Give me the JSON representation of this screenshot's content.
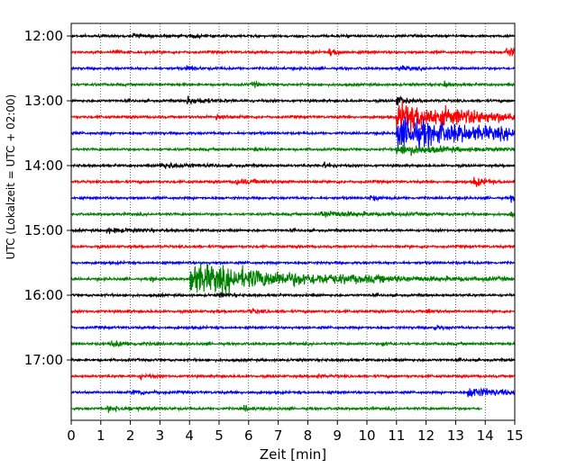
{
  "chart_data": {
    "type": "line",
    "title": "",
    "xlabel": "Zeit  [min]",
    "ylabel": "UTC (Lokalzeit = UTC + 02:00)",
    "xlim": [
      0,
      15
    ],
    "x_ticks": [
      0,
      1,
      2,
      3,
      4,
      5,
      6,
      7,
      8,
      9,
      10,
      11,
      12,
      13,
      14,
      15
    ],
    "y_ticks": [
      {
        "label": "12:00",
        "trace": 0
      },
      {
        "label": "13:00",
        "trace": 4
      },
      {
        "label": "14:00",
        "trace": 8
      },
      {
        "label": "15:00",
        "trace": 12
      },
      {
        "label": "16:00",
        "trace": 16
      },
      {
        "label": "17:00",
        "trace": 20
      }
    ],
    "grid": "vertical-dotted",
    "trace_interval_min": 15,
    "colors": [
      "#000000",
      "#ff0000",
      "#0000ff",
      "#008000"
    ],
    "series": [
      {
        "start": "12:00",
        "events": [
          {
            "t": 2.1,
            "amp": 1.4,
            "dur": 0.3
          },
          {
            "t": 4.0,
            "amp": 1.3,
            "dur": 0.3
          }
        ]
      },
      {
        "start": "12:15",
        "events": [
          {
            "t": 1.4,
            "amp": 1.6,
            "dur": 0.2
          },
          {
            "t": 8.7,
            "amp": 2.2,
            "dur": 0.4
          },
          {
            "t": 14.7,
            "amp": 3.0,
            "dur": 0.5
          }
        ]
      },
      {
        "start": "12:30",
        "events": [
          {
            "t": 3.9,
            "amp": 1.4,
            "dur": 0.3
          },
          {
            "t": 11.0,
            "amp": 1.5,
            "dur": 0.4
          }
        ]
      },
      {
        "start": "12:45",
        "events": [
          {
            "t": 6.1,
            "amp": 1.8,
            "dur": 0.2
          },
          {
            "t": 12.6,
            "amp": 1.8,
            "dur": 0.2
          }
        ]
      },
      {
        "start": "13:00",
        "events": [
          {
            "t": 3.9,
            "amp": 2.2,
            "dur": 0.6
          },
          {
            "t": 11.0,
            "amp": 3.0,
            "dur": 0.3
          }
        ]
      },
      {
        "start": "13:15",
        "events": [
          {
            "t": 4.9,
            "amp": 1.9,
            "dur": 0.3
          },
          {
            "t": 11.0,
            "amp": 8.0,
            "dur": 3.0
          }
        ]
      },
      {
        "start": "13:30",
        "events": [
          {
            "t": 11.0,
            "amp": 9.0,
            "dur": 3.2
          }
        ]
      },
      {
        "start": "13:45",
        "events": [
          {
            "t": 6.2,
            "amp": 1.6,
            "dur": 0.2
          },
          {
            "t": 11.0,
            "amp": 3.0,
            "dur": 1.6
          }
        ]
      },
      {
        "start": "14:00",
        "events": [
          {
            "t": 3.0,
            "amp": 1.5,
            "dur": 1.0
          },
          {
            "t": 8.5,
            "amp": 1.6,
            "dur": 0.3
          }
        ]
      },
      {
        "start": "14:15",
        "events": [
          {
            "t": 5.5,
            "amp": 1.3,
            "dur": 1.0
          },
          {
            "t": 13.6,
            "amp": 2.8,
            "dur": 0.4
          }
        ]
      },
      {
        "start": "14:30",
        "events": [
          {
            "t": 10.1,
            "amp": 1.4,
            "dur": 0.4
          },
          {
            "t": 14.8,
            "amp": 1.6,
            "dur": 0.3
          }
        ]
      },
      {
        "start": "14:45",
        "events": [
          {
            "t": 8.4,
            "amp": 2.0,
            "dur": 1.4
          },
          {
            "t": 14.8,
            "amp": 1.4,
            "dur": 0.3
          }
        ]
      },
      {
        "start": "15:00",
        "events": [
          {
            "t": 1.2,
            "amp": 1.3,
            "dur": 0.8
          }
        ]
      },
      {
        "start": "15:15",
        "events": []
      },
      {
        "start": "15:30",
        "events": []
      },
      {
        "start": "15:45",
        "events": [
          {
            "t": 2.7,
            "amp": 1.6,
            "dur": 0.2
          },
          {
            "t": 4.0,
            "amp": 9.0,
            "dur": 3.6
          }
        ]
      },
      {
        "start": "16:00",
        "events": [
          {
            "t": 5.0,
            "amp": 1.3,
            "dur": 0.2
          }
        ]
      },
      {
        "start": "16:15",
        "events": [
          {
            "t": 6.0,
            "amp": 1.5,
            "dur": 0.3
          },
          {
            "t": 12.0,
            "amp": 1.4,
            "dur": 0.2
          }
        ]
      },
      {
        "start": "16:30",
        "events": [
          {
            "t": 12.2,
            "amp": 1.2,
            "dur": 0.3
          }
        ]
      },
      {
        "start": "16:45",
        "events": [
          {
            "t": 1.3,
            "amp": 1.6,
            "dur": 0.8
          },
          {
            "t": 10.5,
            "amp": 1.6,
            "dur": 0.2
          }
        ]
      },
      {
        "start": "17:00",
        "events": []
      },
      {
        "start": "17:15",
        "events": [
          {
            "t": 2.3,
            "amp": 1.4,
            "dur": 0.3
          },
          {
            "t": 8.3,
            "amp": 1.2,
            "dur": 0.2
          }
        ]
      },
      {
        "start": "17:30",
        "events": [
          {
            "t": 2.1,
            "amp": 1.6,
            "dur": 0.5
          },
          {
            "t": 13.4,
            "amp": 2.8,
            "dur": 1.2
          }
        ]
      },
      {
        "start": "17:45",
        "end_min": 13.9,
        "events": [
          {
            "t": 1.2,
            "amp": 1.4,
            "dur": 1.0
          },
          {
            "t": 5.8,
            "amp": 1.6,
            "dur": 0.3
          }
        ]
      }
    ]
  }
}
